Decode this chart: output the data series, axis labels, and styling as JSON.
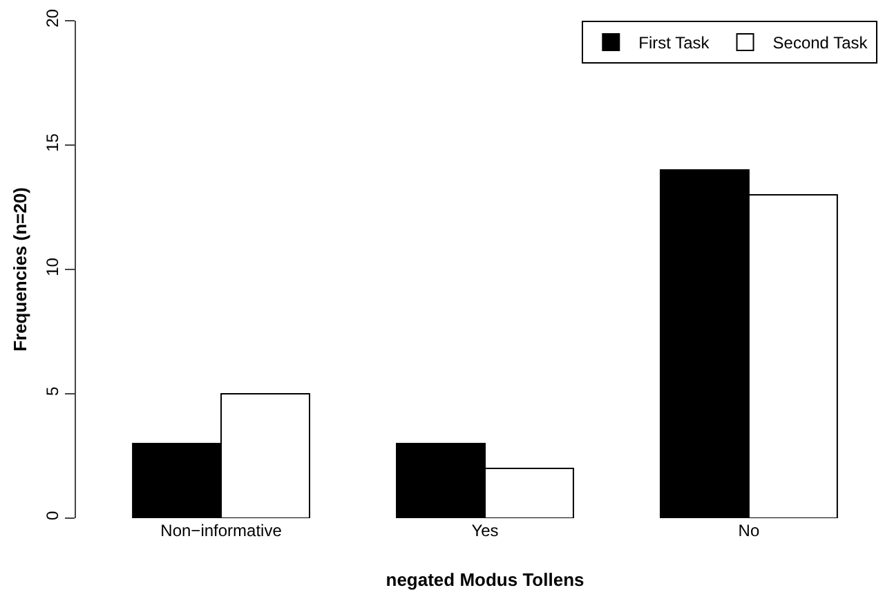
{
  "chart_data": {
    "type": "bar",
    "xlabel": "negated Modus Tollens",
    "ylabel": "Frequencies (n=20)",
    "categories": [
      "Non−informative",
      "Yes",
      "No"
    ],
    "series": [
      {
        "name": "First Task",
        "color": "#000000",
        "values": [
          3,
          3,
          14
        ]
      },
      {
        "name": "Second Task",
        "color": "#ffffff",
        "values": [
          5,
          2,
          13
        ]
      }
    ],
    "ylim": [
      0,
      20
    ],
    "yticks": [
      0,
      5,
      10,
      15,
      20
    ],
    "grid": false,
    "legend": "top right"
  }
}
